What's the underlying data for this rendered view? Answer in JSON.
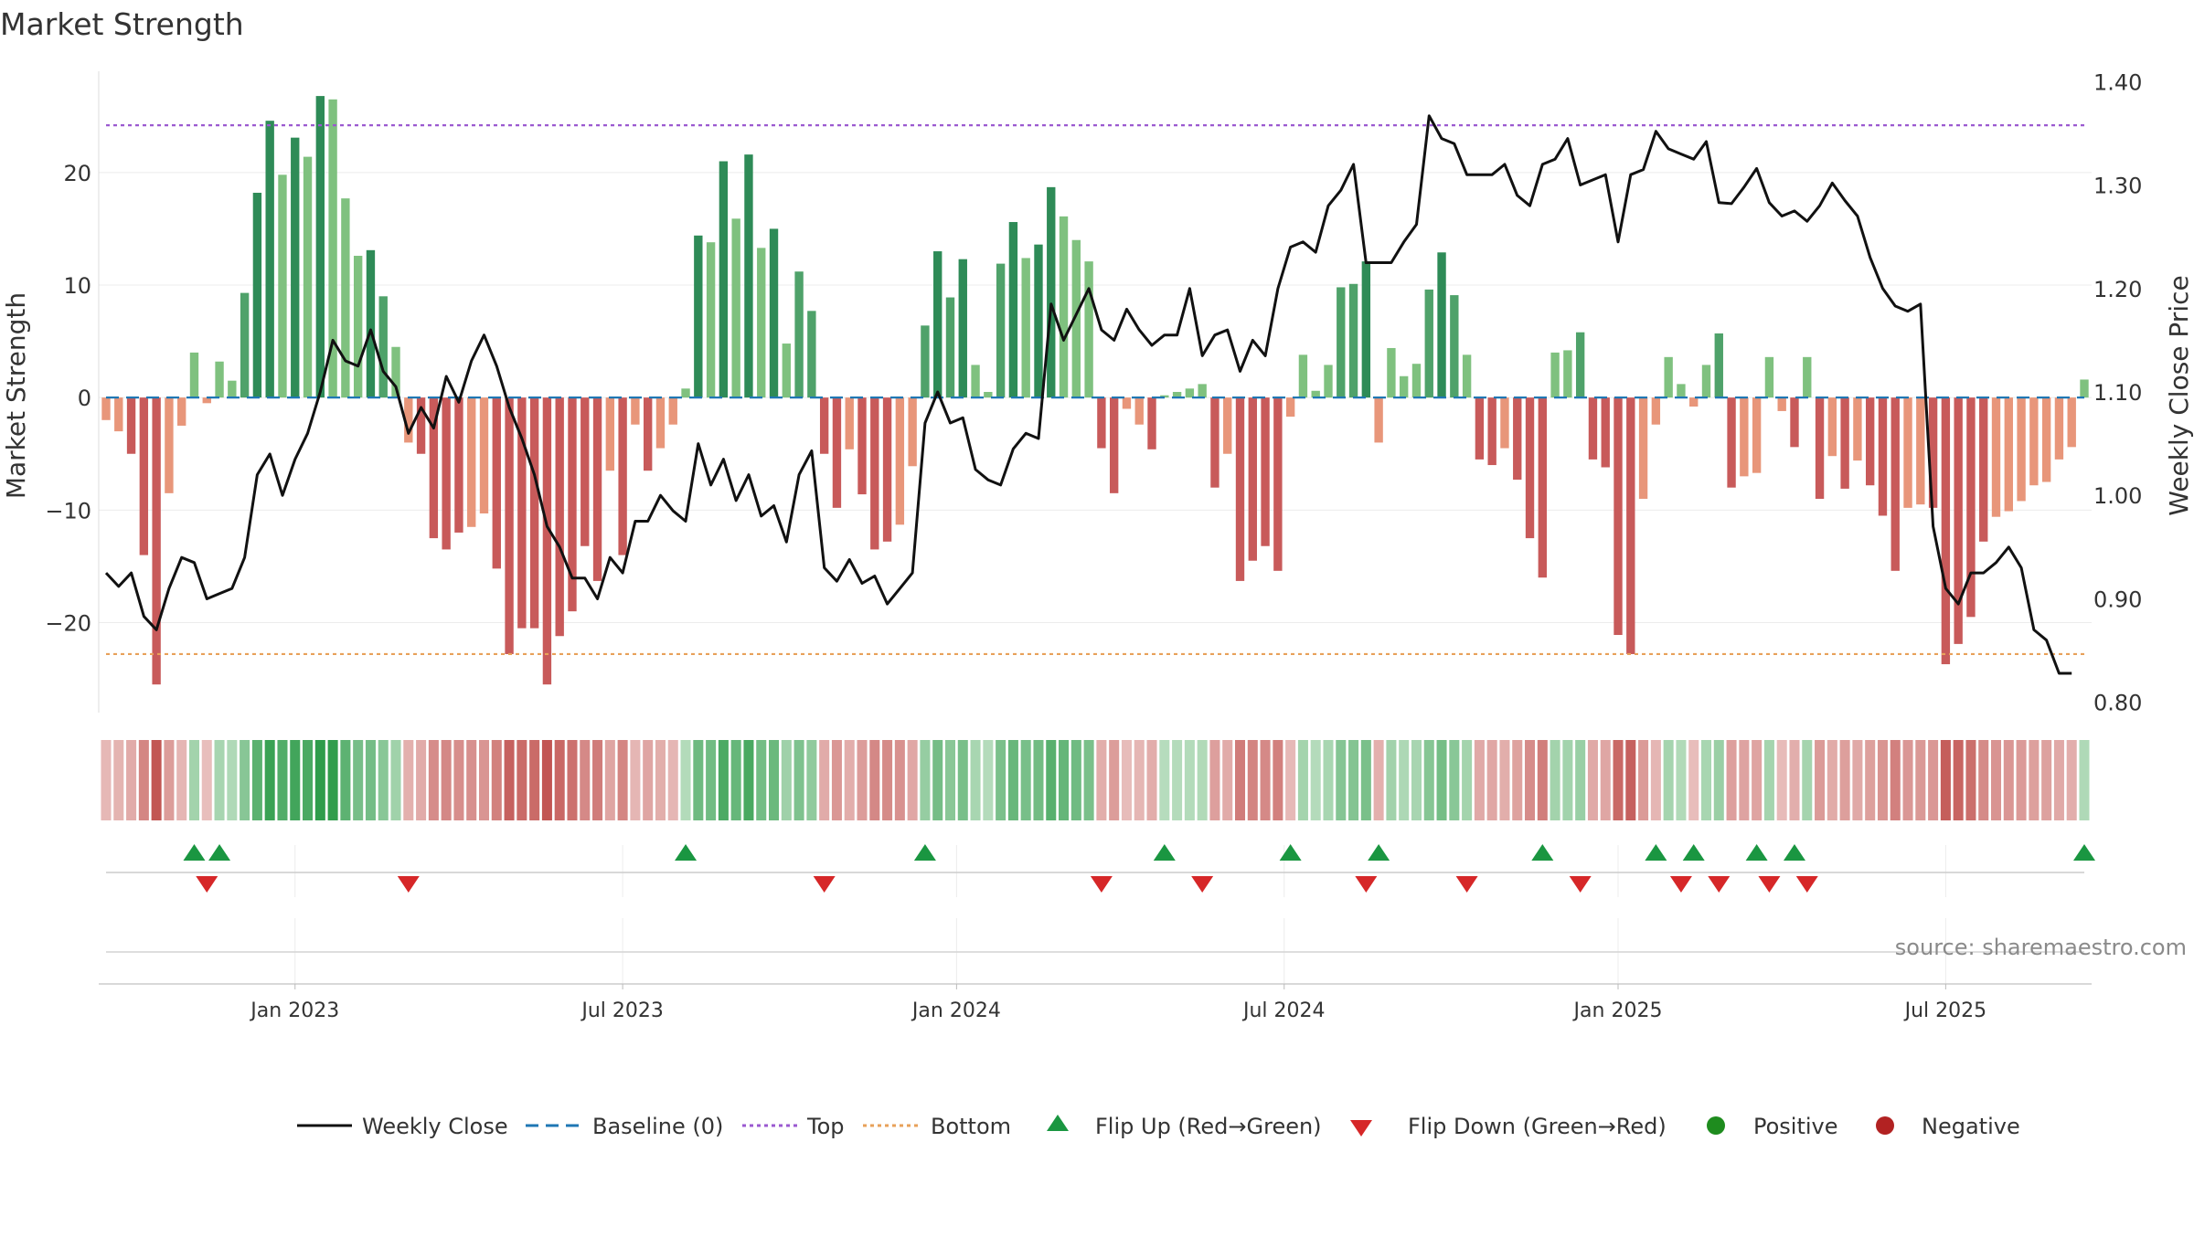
{
  "chart_data": {
    "type": "bar+line",
    "title": "Market Strength",
    "ylabel_left": "Market Strength",
    "ylabel_right": "Weekly Close Price",
    "ylim_left": [
      -28,
      29
    ],
    "ylim_right": [
      0.79,
      1.41
    ],
    "yticks_left": [
      20,
      10,
      0,
      -10,
      -20
    ],
    "yticks_left_labels": [
      "20",
      "10",
      "0",
      "−10",
      "−20"
    ],
    "yticks_right": [
      1.4,
      1.3,
      1.2,
      1.1,
      1.0,
      0.9,
      0.8
    ],
    "yticks_right_labels": [
      "1.40",
      "1.30",
      "1.20",
      "1.10",
      "1.00",
      "0.90",
      "0.80"
    ],
    "xticks": [
      {
        "index": 15,
        "label": "Jan 2023"
      },
      {
        "index": 41,
        "label": "Jul 2023"
      },
      {
        "index": 67.5,
        "label": "Jan 2024"
      },
      {
        "index": 93.5,
        "label": "Jul 2024"
      },
      {
        "index": 120,
        "label": "Jan 2025"
      },
      {
        "index": 146,
        "label": "Jul 2025"
      }
    ],
    "top_level": 24.2,
    "bottom_level": -22.8,
    "baseline": 0,
    "strength": [
      -2,
      -3,
      -5,
      -14,
      -25.5,
      -8.5,
      -2.5,
      4,
      -0.5,
      3.2,
      1.5,
      9.3,
      18.2,
      24.6,
      19.8,
      23.1,
      21.4,
      26.8,
      26.5,
      17.7,
      12.6,
      13.1,
      9,
      4.5,
      -4,
      -5,
      -12.5,
      -13.5,
      -12,
      -11.5,
      -10.3,
      -15.2,
      -22.8,
      -20.5,
      -20.5,
      -25.5,
      -21.2,
      -19,
      -13.2,
      -16.3,
      -6.5,
      -14,
      -2.4,
      -6.5,
      -4.5,
      -2.4,
      0.8,
      14.4,
      13.8,
      21,
      15.9,
      21.6,
      13.3,
      15,
      4.8,
      11.2,
      7.7,
      -5,
      -9.8,
      -4.6,
      -8.6,
      -13.5,
      -12.8,
      -11.3,
      -6.1,
      6.4,
      13,
      8.9,
      12.3,
      2.9,
      0.5,
      11.9,
      15.6,
      12.4,
      13.6,
      18.7,
      16.1,
      14,
      12.1,
      -4.5,
      -8.5,
      -1,
      -2.4,
      -4.6,
      0.2,
      0.5,
      0.8,
      1.2,
      -8,
      -5,
      -16.3,
      -14.5,
      -13.2,
      -15.4,
      -1.7,
      3.8,
      0.6,
      2.9,
      9.8,
      10.1,
      12.1,
      -4,
      4.4,
      1.9,
      3,
      9.6,
      12.9,
      9.1,
      3.8,
      -5.5,
      -6,
      -4.5,
      -7.3,
      -12.5,
      -16,
      4,
      4.2,
      5.8,
      -5.5,
      -6.2,
      -21.1,
      -22.8,
      -9,
      -2.4,
      3.6,
      1.2,
      -0.8,
      2.9,
      5.7,
      -8,
      -7,
      -6.7,
      3.6,
      -1.2,
      -4.4,
      3.6,
      -9,
      -5.2,
      -8.1,
      -5.6,
      -7.8,
      -10.5,
      -15.4,
      -9.8,
      -9.5,
      -9.8,
      -23.7,
      -21.9,
      -19.5,
      -12.8,
      -10.6,
      -10.1,
      -9.2,
      -7.8,
      -7.5,
      -5.5,
      -4.4,
      1.6
    ],
    "weekly_close": [
      0.925,
      0.912,
      0.925,
      0.883,
      0.87,
      0.91,
      0.94,
      0.935,
      0.9,
      0.905,
      0.91,
      0.94,
      1.02,
      1.04,
      1.0,
      1.035,
      1.06,
      1.1,
      1.15,
      1.13,
      1.125,
      1.16,
      1.12,
      1.105,
      1.06,
      1.085,
      1.065,
      1.115,
      1.09,
      1.13,
      1.155,
      1.125,
      1.085,
      1.055,
      1.02,
      0.97,
      0.95,
      0.92,
      0.92,
      0.9,
      0.94,
      0.925,
      0.975,
      0.975,
      1.0,
      0.985,
      0.975,
      1.05,
      1.01,
      1.035,
      0.995,
      1.02,
      0.98,
      0.99,
      0.955,
      1.02,
      1.043,
      0.93,
      0.917,
      0.938,
      0.915,
      0.922,
      0.895,
      0.91,
      0.925,
      1.07,
      1.1,
      1.07,
      1.075,
      1.025,
      1.015,
      1.01,
      1.045,
      1.06,
      1.055,
      1.185,
      1.15,
      1.175,
      1.2,
      1.16,
      1.15,
      1.18,
      1.16,
      1.145,
      1.155,
      1.155,
      1.2,
      1.135,
      1.155,
      1.16,
      1.12,
      1.15,
      1.135,
      1.2,
      1.24,
      1.245,
      1.235,
      1.28,
      1.295,
      1.32,
      1.225,
      1.225,
      1.225,
      1.245,
      1.262,
      1.367,
      1.345,
      1.34,
      1.31,
      1.31,
      1.31,
      1.32,
      1.29,
      1.28,
      1.32,
      1.325,
      1.345,
      1.3,
      1.305,
      1.31,
      1.245,
      1.31,
      1.315,
      1.352,
      1.335,
      1.33,
      1.325,
      1.342,
      1.283,
      1.282,
      1.298,
      1.316,
      1.283,
      1.27,
      1.275,
      1.265,
      1.28,
      1.302,
      1.285,
      1.27,
      1.23,
      1.2,
      1.183,
      1.178,
      1.185,
      0.97,
      0.91,
      0.895,
      0.925,
      0.925,
      0.935,
      0.95,
      0.93,
      0.87,
      0.86,
      0.828,
      0.828
    ],
    "flip_up_indices": [
      7,
      9,
      46,
      65,
      84,
      94,
      101,
      114,
      123,
      126,
      131,
      134,
      157
    ],
    "flip_down_indices": [
      8,
      24,
      57,
      79,
      87,
      100,
      108,
      117,
      125,
      128,
      132,
      135
    ],
    "legend": {
      "weekly_close": "Weekly Close",
      "baseline": "Baseline (0)",
      "top": "Top",
      "bottom": "Bottom",
      "flip_up": "Flip Up (Red→Green)",
      "flip_down": "Flip Down (Green→Red)",
      "positive": "Positive",
      "negative": "Negative"
    },
    "legend_position": "bottom-center",
    "source": "source: sharemaestro.com"
  },
  "colors": {
    "positive_dark": "#2e8b57",
    "positive_light": "#7fc17f",
    "negative_dark": "#c85a5a",
    "negative_light": "#e8967a",
    "line": "#111111",
    "baseline": "#1f77b4",
    "top": "#9b59d0",
    "bottom": "#e8a15a",
    "flip_up": "#1a9641",
    "flip_down": "#d62728",
    "legend_positive": "#1e8c1e",
    "legend_negative": "#b22222"
  }
}
